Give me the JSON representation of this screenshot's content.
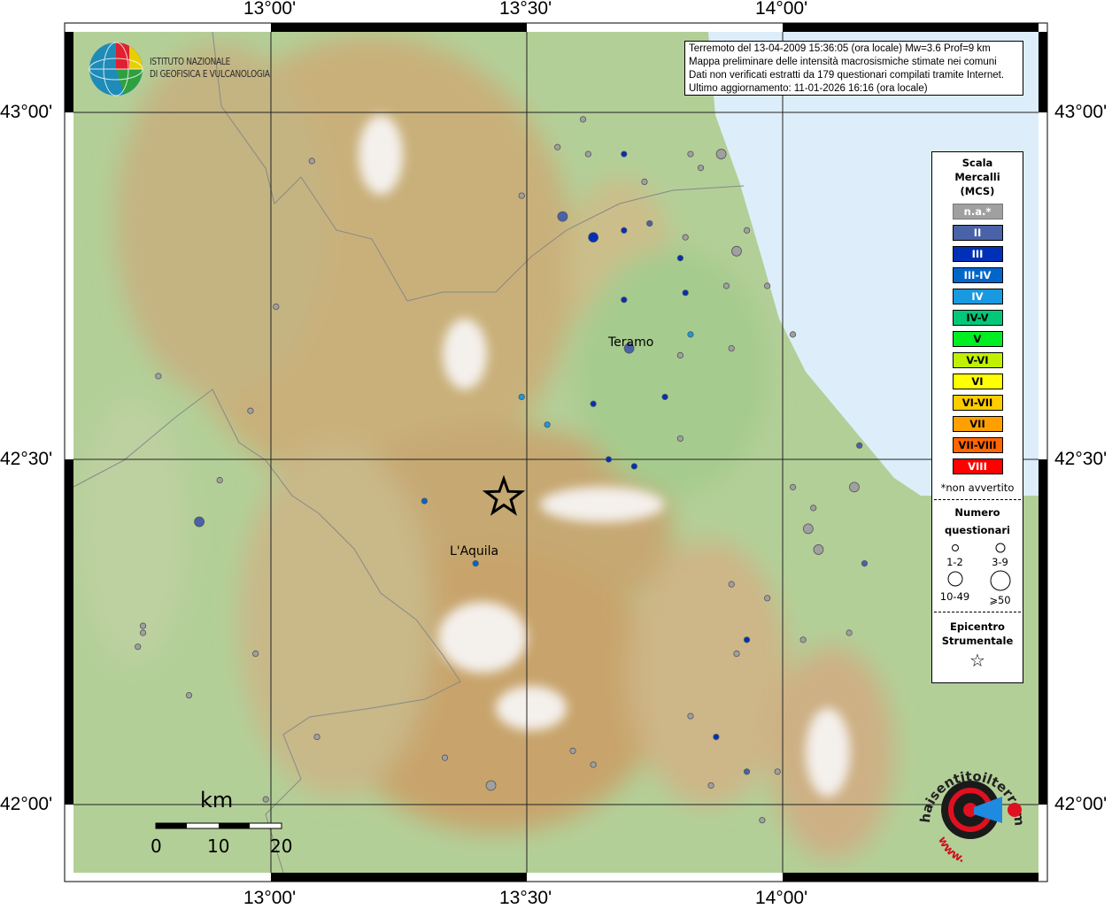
{
  "axes": {
    "lon_ticks": [
      "13°00'",
      "13°30'",
      "14°00'"
    ],
    "lat_ticks": [
      "43°00'",
      "42°30'",
      "42°00'"
    ]
  },
  "header_logo": {
    "line1": "ISTITUTO NAZIONALE",
    "line2": "DI GEOFISICA E VULCANOLOGIA"
  },
  "info": {
    "line1": "Terremoto del 13-04-2009 15:36:05 (ora locale) Mw=3.6 Prof=9 km",
    "line2": "Mappa preliminare delle intensità macrosismiche stimate nei comuni",
    "line3": "Dati non verificati estratti da 179 questionari compilati tramite Internet.",
    "line4": "Ultimo aggiornamento: 11-01-2026 16:16 (ora locale)"
  },
  "legend": {
    "title": [
      "Scala",
      "Mercalli",
      "(MCS)"
    ],
    "classes": [
      {
        "label": "n.a.*",
        "color": "#a0a0a0",
        "text": "#ffffff"
      },
      {
        "label": "II",
        "color": "#4a62a8",
        "text": "#ffffff"
      },
      {
        "label": "III",
        "color": "#0030b8",
        "text": "#ffffff"
      },
      {
        "label": "III-IV",
        "color": "#0066cc",
        "text": "#ffffff"
      },
      {
        "label": "IV",
        "color": "#1899e0",
        "text": "#ffffff"
      },
      {
        "label": "IV-V",
        "color": "#00c878",
        "text": "#000000"
      },
      {
        "label": "V",
        "color": "#00ee22",
        "text": "#000000"
      },
      {
        "label": "V-VI",
        "color": "#c0f000",
        "text": "#000000"
      },
      {
        "label": "VI",
        "color": "#ffff00",
        "text": "#000000"
      },
      {
        "label": "VI-VII",
        "color": "#ffcc00",
        "text": "#000000"
      },
      {
        "label": "VII",
        "color": "#ffa000",
        "text": "#000000"
      },
      {
        "label": "VII-VIII",
        "color": "#ff6600",
        "text": "#000000"
      },
      {
        "label": "VIII",
        "color": "#ff0000",
        "text": "#ffffff"
      }
    ],
    "note": "*non avvertito",
    "count_title": [
      "Numero",
      "questionari"
    ],
    "count_sizes": [
      "1-2",
      "3-9",
      "10-49",
      "⩾50"
    ],
    "epicenter_title": [
      "Epicentro",
      "Strumentale"
    ]
  },
  "cities": [
    {
      "name": "Teramo"
    },
    {
      "name": "L'Aquila"
    }
  ],
  "epicenter": {
    "lon": 13.455,
    "lat": 42.445
  },
  "scale_bar": {
    "unit": "km",
    "ticks": [
      "0",
      "10",
      "20"
    ]
  },
  "site_logo": {
    "text": "haisentitoilterremoto.it",
    "prefix": "www."
  },
  "points": [
    {
      "lon": 13.61,
      "lat": 42.99,
      "c": "n.a.*",
      "n": "1-2"
    },
    {
      "lon": 13.56,
      "lat": 42.95,
      "c": "n.a.*",
      "n": "1-2"
    },
    {
      "lon": 13.62,
      "lat": 42.94,
      "c": "n.a.*",
      "n": "1-2"
    },
    {
      "lon": 13.08,
      "lat": 42.93,
      "c": "n.a.*",
      "n": "1-2"
    },
    {
      "lon": 13.73,
      "lat": 42.9,
      "c": "n.a.*",
      "n": "1-2"
    },
    {
      "lon": 13.82,
      "lat": 42.94,
      "c": "n.a.*",
      "n": "1-2"
    },
    {
      "lon": 13.84,
      "lat": 42.92,
      "c": "n.a.*",
      "n": "1-2"
    },
    {
      "lon": 13.88,
      "lat": 42.94,
      "c": "n.a.*",
      "n": "3-9"
    },
    {
      "lon": 13.49,
      "lat": 42.88,
      "c": "n.a.*",
      "n": "1-2"
    },
    {
      "lon": 13.81,
      "lat": 42.82,
      "c": "n.a.*",
      "n": "1-2"
    },
    {
      "lon": 13.91,
      "lat": 42.8,
      "c": "n.a.*",
      "n": "3-9"
    },
    {
      "lon": 13.93,
      "lat": 42.83,
      "c": "n.a.*",
      "n": "1-2"
    },
    {
      "lon": 13.89,
      "lat": 42.75,
      "c": "n.a.*",
      "n": "1-2"
    },
    {
      "lon": 13.97,
      "lat": 42.75,
      "c": "n.a.*",
      "n": "1-2"
    },
    {
      "lon": 13.01,
      "lat": 42.72,
      "c": "n.a.*",
      "n": "1-2"
    },
    {
      "lon": 13.8,
      "lat": 42.65,
      "c": "n.a.*",
      "n": "1-2"
    },
    {
      "lon": 13.9,
      "lat": 42.66,
      "c": "n.a.*",
      "n": "1-2"
    },
    {
      "lon": 14.02,
      "lat": 42.68,
      "c": "n.a.*",
      "n": "1-2"
    },
    {
      "lon": 12.78,
      "lat": 42.62,
      "c": "n.a.*",
      "n": "1-2"
    },
    {
      "lon": 12.96,
      "lat": 42.57,
      "c": "n.a.*",
      "n": "1-2"
    },
    {
      "lon": 13.8,
      "lat": 42.53,
      "c": "n.a.*",
      "n": "1-2"
    },
    {
      "lon": 12.9,
      "lat": 42.47,
      "c": "n.a.*",
      "n": "1-2"
    },
    {
      "lon": 14.02,
      "lat": 42.46,
      "c": "n.a.*",
      "n": "1-2"
    },
    {
      "lon": 14.14,
      "lat": 42.46,
      "c": "n.a.*",
      "n": "3-9"
    },
    {
      "lon": 14.06,
      "lat": 42.43,
      "c": "n.a.*",
      "n": "1-2"
    },
    {
      "lon": 14.05,
      "lat": 42.4,
      "c": "n.a.*",
      "n": "3-9"
    },
    {
      "lon": 14.07,
      "lat": 42.37,
      "c": "n.a.*",
      "n": "3-9"
    },
    {
      "lon": 13.9,
      "lat": 42.32,
      "c": "n.a.*",
      "n": "1-2"
    },
    {
      "lon": 13.97,
      "lat": 42.3,
      "c": "n.a.*",
      "n": "1-2"
    },
    {
      "lon": 14.04,
      "lat": 42.24,
      "c": "n.a.*",
      "n": "1-2"
    },
    {
      "lon": 14.13,
      "lat": 42.25,
      "c": "n.a.*",
      "n": "1-2"
    },
    {
      "lon": 13.91,
      "lat": 42.22,
      "c": "n.a.*",
      "n": "1-2"
    },
    {
      "lon": 12.97,
      "lat": 42.22,
      "c": "n.a.*",
      "n": "1-2"
    },
    {
      "lon": 12.75,
      "lat": 42.26,
      "c": "n.a.*",
      "n": "1-2"
    },
    {
      "lon": 12.75,
      "lat": 42.25,
      "c": "n.a.*",
      "n": "1-2"
    },
    {
      "lon": 12.74,
      "lat": 42.23,
      "c": "n.a.*",
      "n": "1-2"
    },
    {
      "lon": 12.84,
      "lat": 42.16,
      "c": "n.a.*",
      "n": "1-2"
    },
    {
      "lon": 13.82,
      "lat": 42.13,
      "c": "n.a.*",
      "n": "1-2"
    },
    {
      "lon": 13.09,
      "lat": 42.1,
      "c": "n.a.*",
      "n": "1-2"
    },
    {
      "lon": 13.59,
      "lat": 42.08,
      "c": "n.a.*",
      "n": "1-2"
    },
    {
      "lon": 13.63,
      "lat": 42.06,
      "c": "n.a.*",
      "n": "1-2"
    },
    {
      "lon": 13.34,
      "lat": 42.07,
      "c": "n.a.*",
      "n": "1-2"
    },
    {
      "lon": 13.43,
      "lat": 42.03,
      "c": "n.a.*",
      "n": "3-9"
    },
    {
      "lon": 13.86,
      "lat": 42.03,
      "c": "n.a.*",
      "n": "1-2"
    },
    {
      "lon": 13.99,
      "lat": 42.05,
      "c": "n.a.*",
      "n": "1-2"
    },
    {
      "lon": 13.96,
      "lat": 41.98,
      "c": "n.a.*",
      "n": "1-2"
    },
    {
      "lon": 12.99,
      "lat": 42.01,
      "c": "n.a.*",
      "n": "1-2"
    },
    {
      "lon": 13.57,
      "lat": 42.85,
      "c": "II",
      "n": "3-9"
    },
    {
      "lon": 12.86,
      "lat": 42.41,
      "c": "II",
      "n": "3-9"
    },
    {
      "lon": 13.7,
      "lat": 42.66,
      "c": "II",
      "n": "3-9"
    },
    {
      "lon": 14.15,
      "lat": 42.52,
      "c": "II",
      "n": "1-2"
    },
    {
      "lon": 14.16,
      "lat": 42.35,
      "c": "II",
      "n": "1-2"
    },
    {
      "lon": 13.93,
      "lat": 42.05,
      "c": "II",
      "n": "1-2"
    },
    {
      "lon": 13.74,
      "lat": 42.84,
      "c": "II",
      "n": "1-2"
    },
    {
      "lon": 13.69,
      "lat": 42.94,
      "c": "III",
      "n": "1-2"
    },
    {
      "lon": 13.63,
      "lat": 42.82,
      "c": "III",
      "n": "3-9"
    },
    {
      "lon": 13.69,
      "lat": 42.83,
      "c": "III",
      "n": "1-2"
    },
    {
      "lon": 13.8,
      "lat": 42.79,
      "c": "III",
      "n": "1-2"
    },
    {
      "lon": 13.81,
      "lat": 42.74,
      "c": "III",
      "n": "1-2"
    },
    {
      "lon": 13.69,
      "lat": 42.73,
      "c": "III",
      "n": "1-2"
    },
    {
      "lon": 13.77,
      "lat": 42.59,
      "c": "III",
      "n": "1-2"
    },
    {
      "lon": 13.63,
      "lat": 42.58,
      "c": "III",
      "n": "1-2"
    },
    {
      "lon": 13.66,
      "lat": 42.5,
      "c": "III",
      "n": "1-2"
    },
    {
      "lon": 13.71,
      "lat": 42.49,
      "c": "III",
      "n": "1-2"
    },
    {
      "lon": 13.93,
      "lat": 42.24,
      "c": "III",
      "n": "1-2"
    },
    {
      "lon": 13.87,
      "lat": 42.1,
      "c": "III",
      "n": "1-2"
    },
    {
      "lon": 13.3,
      "lat": 42.44,
      "c": "III-IV",
      "n": "1-2"
    },
    {
      "lon": 13.4,
      "lat": 42.35,
      "c": "III-IV",
      "n": "1-2"
    },
    {
      "lon": 13.82,
      "lat": 42.68,
      "c": "IV",
      "n": "1-2"
    },
    {
      "lon": 13.49,
      "lat": 42.59,
      "c": "IV",
      "n": "1-2"
    },
    {
      "lon": 13.54,
      "lat": 42.55,
      "c": "IV",
      "n": "1-2"
    }
  ]
}
